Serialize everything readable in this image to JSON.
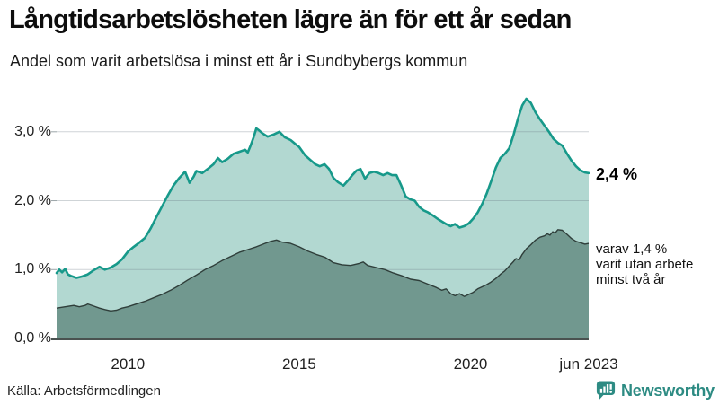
{
  "header": {
    "title": "Långtidsarbetslösheten lägre än för ett år sedan",
    "subtitle": "Andel som varit arbetslösa i minst ett år i Sundbybergs kommun"
  },
  "annotations": {
    "latest_total": "2,4 %",
    "two_year_lines": [
      "varav 1,4 %",
      "varit utan arbete",
      "minst två år"
    ]
  },
  "footer": {
    "source": "Källa: Arbetsförmedlingen",
    "brand": "Newsworthy"
  },
  "colors": {
    "line_total": "#17998a",
    "line_two_year": "#2f3e3a",
    "area_total": "#b2d8d1",
    "area_two_year": "#71988f",
    "grid": "rgba(105,122,132,0.32)",
    "axis": "#4a5250",
    "brand_teal": "#2d8b83",
    "text": "#111111"
  },
  "chart_data": {
    "type": "area",
    "title": "Långtidsarbetslösheten lägre än för ett år sedan",
    "subtitle": "Andel som varit arbetslösa i minst ett år i Sundbybergs kommun",
    "source": "Källa: Arbetsförmedlingen",
    "unit": "%",
    "xlim": [
      2007.92,
      2023.45
    ],
    "ylim": [
      0,
      3.61
    ],
    "grid": "horizontal",
    "legend_position": "right-edge-annotations",
    "x_ticks": [
      {
        "year": 2010,
        "label": "2010"
      },
      {
        "year": 2015,
        "label": "2015"
      },
      {
        "year": 2020,
        "label": "2020"
      },
      {
        "year": 2023.45,
        "label": "jun 2023"
      }
    ],
    "y_ticks": [
      {
        "value": 3,
        "label": "3,0 %"
      },
      {
        "value": 2,
        "label": "2,0 %"
      },
      {
        "value": 1,
        "label": "1,0 %"
      },
      {
        "value": 0,
        "label": "0,0 %"
      }
    ],
    "series": [
      {
        "name": "Arbetslösa minst ett år",
        "latest_label": "2,4 %",
        "latest_value": 2.4,
        "points": [
          [
            2007.92,
            0.95
          ],
          [
            2008.0,
            1.0
          ],
          [
            2008.08,
            0.96
          ],
          [
            2008.17,
            1.01
          ],
          [
            2008.25,
            0.93
          ],
          [
            2008.33,
            0.91
          ],
          [
            2008.5,
            0.88
          ],
          [
            2008.67,
            0.9
          ],
          [
            2008.83,
            0.93
          ],
          [
            2009.0,
            0.99
          ],
          [
            2009.17,
            1.04
          ],
          [
            2009.33,
            1.0
          ],
          [
            2009.5,
            1.03
          ],
          [
            2009.67,
            1.08
          ],
          [
            2009.83,
            1.15
          ],
          [
            2010.0,
            1.26
          ],
          [
            2010.17,
            1.33
          ],
          [
            2010.33,
            1.39
          ],
          [
            2010.5,
            1.46
          ],
          [
            2010.67,
            1.6
          ],
          [
            2010.83,
            1.76
          ],
          [
            2011.0,
            1.92
          ],
          [
            2011.17,
            2.08
          ],
          [
            2011.33,
            2.22
          ],
          [
            2011.5,
            2.33
          ],
          [
            2011.67,
            2.42
          ],
          [
            2011.8,
            2.26
          ],
          [
            2011.92,
            2.35
          ],
          [
            2012.0,
            2.43
          ],
          [
            2012.17,
            2.4
          ],
          [
            2012.33,
            2.46
          ],
          [
            2012.5,
            2.53
          ],
          [
            2012.63,
            2.62
          ],
          [
            2012.75,
            2.56
          ],
          [
            2012.92,
            2.61
          ],
          [
            2013.08,
            2.68
          ],
          [
            2013.25,
            2.71
          ],
          [
            2013.42,
            2.74
          ],
          [
            2013.5,
            2.7
          ],
          [
            2013.58,
            2.8
          ],
          [
            2013.67,
            2.92
          ],
          [
            2013.75,
            3.05
          ],
          [
            2013.83,
            3.02
          ],
          [
            2013.92,
            2.98
          ],
          [
            2014.08,
            2.93
          ],
          [
            2014.25,
            2.96
          ],
          [
            2014.42,
            3.0
          ],
          [
            2014.58,
            2.92
          ],
          [
            2014.75,
            2.88
          ],
          [
            2014.92,
            2.81
          ],
          [
            2015.0,
            2.78
          ],
          [
            2015.17,
            2.66
          ],
          [
            2015.33,
            2.59
          ],
          [
            2015.47,
            2.53
          ],
          [
            2015.6,
            2.5
          ],
          [
            2015.74,
            2.53
          ],
          [
            2015.87,
            2.46
          ],
          [
            2016.0,
            2.33
          ],
          [
            2016.13,
            2.27
          ],
          [
            2016.29,
            2.22
          ],
          [
            2016.42,
            2.29
          ],
          [
            2016.55,
            2.37
          ],
          [
            2016.68,
            2.44
          ],
          [
            2016.79,
            2.46
          ],
          [
            2016.92,
            2.32
          ],
          [
            2017.05,
            2.4
          ],
          [
            2017.18,
            2.42
          ],
          [
            2017.32,
            2.4
          ],
          [
            2017.45,
            2.37
          ],
          [
            2017.58,
            2.4
          ],
          [
            2017.71,
            2.37
          ],
          [
            2017.84,
            2.37
          ],
          [
            2017.97,
            2.23
          ],
          [
            2018.11,
            2.06
          ],
          [
            2018.24,
            2.02
          ],
          [
            2018.37,
            2.0
          ],
          [
            2018.5,
            1.91
          ],
          [
            2018.63,
            1.86
          ],
          [
            2018.76,
            1.83
          ],
          [
            2018.89,
            1.79
          ],
          [
            2019.03,
            1.74
          ],
          [
            2019.16,
            1.7
          ],
          [
            2019.29,
            1.66
          ],
          [
            2019.42,
            1.63
          ],
          [
            2019.55,
            1.66
          ],
          [
            2019.68,
            1.61
          ],
          [
            2019.82,
            1.63
          ],
          [
            2019.95,
            1.67
          ],
          [
            2020.08,
            1.74
          ],
          [
            2020.21,
            1.83
          ],
          [
            2020.34,
            1.95
          ],
          [
            2020.47,
            2.1
          ],
          [
            2020.6,
            2.28
          ],
          [
            2020.74,
            2.48
          ],
          [
            2020.87,
            2.62
          ],
          [
            2021.0,
            2.68
          ],
          [
            2021.13,
            2.76
          ],
          [
            2021.26,
            2.96
          ],
          [
            2021.39,
            3.2
          ],
          [
            2021.51,
            3.38
          ],
          [
            2021.63,
            3.48
          ],
          [
            2021.76,
            3.42
          ],
          [
            2021.9,
            3.28
          ],
          [
            2022.03,
            3.18
          ],
          [
            2022.16,
            3.09
          ],
          [
            2022.29,
            3.0
          ],
          [
            2022.42,
            2.9
          ],
          [
            2022.55,
            2.84
          ],
          [
            2022.68,
            2.8
          ],
          [
            2022.82,
            2.68
          ],
          [
            2022.95,
            2.58
          ],
          [
            2023.08,
            2.5
          ],
          [
            2023.21,
            2.44
          ],
          [
            2023.34,
            2.41
          ],
          [
            2023.45,
            2.4
          ]
        ]
      },
      {
        "name": "Arbetslösa minst två år",
        "latest_label": "varav 1,4 % varit utan arbete minst två år",
        "latest_value": 1.4,
        "points": [
          [
            2007.92,
            0.44
          ],
          [
            2008.17,
            0.46
          ],
          [
            2008.42,
            0.48
          ],
          [
            2008.58,
            0.46
          ],
          [
            2008.75,
            0.48
          ],
          [
            2008.83,
            0.5
          ],
          [
            2009.0,
            0.47
          ],
          [
            2009.17,
            0.44
          ],
          [
            2009.33,
            0.42
          ],
          [
            2009.5,
            0.4
          ],
          [
            2009.67,
            0.41
          ],
          [
            2009.83,
            0.44
          ],
          [
            2010.0,
            0.46
          ],
          [
            2010.25,
            0.5
          ],
          [
            2010.5,
            0.54
          ],
          [
            2010.75,
            0.59
          ],
          [
            2011.0,
            0.64
          ],
          [
            2011.25,
            0.7
          ],
          [
            2011.5,
            0.77
          ],
          [
            2011.75,
            0.85
          ],
          [
            2012.0,
            0.92
          ],
          [
            2012.25,
            1.0
          ],
          [
            2012.5,
            1.06
          ],
          [
            2012.75,
            1.13
          ],
          [
            2013.0,
            1.19
          ],
          [
            2013.25,
            1.25
          ],
          [
            2013.5,
            1.29
          ],
          [
            2013.75,
            1.33
          ],
          [
            2014.0,
            1.38
          ],
          [
            2014.17,
            1.41
          ],
          [
            2014.34,
            1.43
          ],
          [
            2014.5,
            1.4
          ],
          [
            2014.75,
            1.38
          ],
          [
            2015.0,
            1.33
          ],
          [
            2015.25,
            1.27
          ],
          [
            2015.5,
            1.22
          ],
          [
            2015.75,
            1.18
          ],
          [
            2016.0,
            1.1
          ],
          [
            2016.25,
            1.07
          ],
          [
            2016.5,
            1.06
          ],
          [
            2016.75,
            1.09
          ],
          [
            2016.87,
            1.11
          ],
          [
            2017.0,
            1.06
          ],
          [
            2017.25,
            1.03
          ],
          [
            2017.5,
            1.0
          ],
          [
            2017.75,
            0.95
          ],
          [
            2018.0,
            0.91
          ],
          [
            2018.25,
            0.86
          ],
          [
            2018.5,
            0.84
          ],
          [
            2018.75,
            0.79
          ],
          [
            2019.0,
            0.74
          ],
          [
            2019.16,
            0.7
          ],
          [
            2019.29,
            0.72
          ],
          [
            2019.42,
            0.65
          ],
          [
            2019.55,
            0.62
          ],
          [
            2019.68,
            0.65
          ],
          [
            2019.82,
            0.61
          ],
          [
            2019.95,
            0.64
          ],
          [
            2020.08,
            0.67
          ],
          [
            2020.21,
            0.72
          ],
          [
            2020.34,
            0.75
          ],
          [
            2020.47,
            0.78
          ],
          [
            2020.6,
            0.82
          ],
          [
            2020.74,
            0.87
          ],
          [
            2020.87,
            0.93
          ],
          [
            2021.0,
            0.98
          ],
          [
            2021.13,
            1.05
          ],
          [
            2021.26,
            1.12
          ],
          [
            2021.33,
            1.16
          ],
          [
            2021.42,
            1.14
          ],
          [
            2021.51,
            1.22
          ],
          [
            2021.63,
            1.3
          ],
          [
            2021.76,
            1.36
          ],
          [
            2021.9,
            1.43
          ],
          [
            2022.03,
            1.47
          ],
          [
            2022.16,
            1.49
          ],
          [
            2022.24,
            1.52
          ],
          [
            2022.32,
            1.5
          ],
          [
            2022.4,
            1.55
          ],
          [
            2022.47,
            1.53
          ],
          [
            2022.55,
            1.58
          ],
          [
            2022.68,
            1.57
          ],
          [
            2022.82,
            1.51
          ],
          [
            2022.95,
            1.45
          ],
          [
            2023.08,
            1.41
          ],
          [
            2023.21,
            1.39
          ],
          [
            2023.34,
            1.37
          ],
          [
            2023.45,
            1.38
          ]
        ]
      }
    ]
  }
}
